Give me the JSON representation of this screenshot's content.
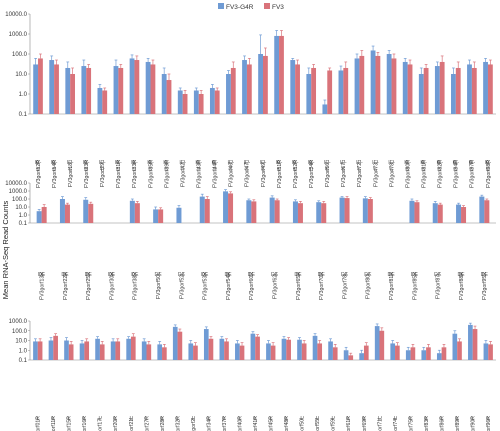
{
  "chart_data": {
    "type": "bar",
    "ylabel": "Mean RNA-Seq Read Counts",
    "yscale": "log",
    "colors": [
      "#6f9bd4",
      "#d9737a"
    ],
    "legend": [
      "FV3-G4R",
      "FV3"
    ],
    "legend_position": "top-center",
    "grid": false,
    "panels": [
      {
        "ylim": [
          0.1,
          10000
        ],
        "yticks": [
          "0.1",
          "1.0",
          "10.0",
          "100.0",
          "1000.0",
          "10000.0"
        ],
        "categories": [
          "FV3gorf12R",
          "FV3gorf14R",
          "FV3gorf18L",
          "FV3gorf23R",
          "FV3gorf29L",
          "FV3gorf31R",
          "FV3gorf33R",
          "FV3gorf35R",
          "FV3gorf39R",
          "FV3gorf42L",
          "FV3gorf43R",
          "FV3gorf44R",
          "FV3gorf46L",
          "FV3gorf47L",
          "FV3gorf49L",
          "FV3gorf51R",
          "FV3gorf52R",
          "FV3gorf54R",
          "FV3gorf56L",
          "FV3gorf67L",
          "FV3gorf72L",
          "FV3gorf73L",
          "FV3gorf78L",
          "FV3gorf80R",
          "FV3gorf81R",
          "FV3gorf82R",
          "FV3gorf94R",
          "FV3gorf97R",
          "FV3gorf98R"
        ],
        "groups": [
          "IE-S",
          "IE-S",
          "IE-S",
          "IE-S",
          "IE-Tr",
          "IE-S",
          "IE-S",
          "IE-S",
          "IE-S",
          "IE-Tr",
          "IE-Tr",
          "IE-Tr",
          "IE-S",
          "IE-S",
          "IE-S",
          "IE-S",
          "IE-S",
          "IE-Tr",
          "IE-S",
          "IE-S",
          "IE-S",
          "IE-S",
          "IE-S",
          "IE-S",
          "IE-S",
          "IE-S",
          "IE-S",
          "IE-S",
          "IE-S"
        ],
        "series": [
          {
            "name": "FV3-G4R",
            "values": [
              30,
              50,
              20,
              25,
              2,
              25,
              60,
              40,
              10,
              1.5,
              1.5,
              2,
              10,
              50,
              100,
              800,
              50,
              10,
              0.3,
              15,
              60,
              150,
              100,
              40,
              10,
              25,
              10,
              30,
              40
            ],
            "errors": [
              60,
              80,
              40,
              50,
              3,
              50,
              90,
              60,
              20,
              2,
              2,
              3,
              15,
              80,
              900,
              1500,
              60,
              20,
              0.5,
              25,
              100,
              250,
              150,
              60,
              20,
              40,
              20,
              50,
              60
            ]
          },
          {
            "name": "FV3",
            "values": [
              60,
              30,
              10,
              20,
              1.5,
              20,
              50,
              30,
              5,
              1,
              1,
              1.5,
              20,
              30,
              80,
              800,
              30,
              20,
              15,
              20,
              80,
              80,
              60,
              30,
              20,
              40,
              20,
              20,
              30
            ],
            "errors": [
              100,
              50,
              20,
              30,
              2,
              30,
              80,
              50,
              10,
              1.5,
              1.5,
              2,
              40,
              60,
              200,
              1500,
              50,
              30,
              20,
              40,
              150,
              120,
              100,
              50,
              30,
              80,
              40,
              40,
              50
            ]
          }
        ]
      },
      {
        "ylim": [
          0.1,
          10000
        ],
        "yticks": [
          "0.1",
          "1.0",
          "10.0",
          "100.0",
          "1000.0",
          "10000.0"
        ],
        "categories": [
          "FV3gorf13R",
          "FV3gorf22R",
          "FV3gorf25R",
          "FV3gorf30R",
          "FV3gorf38R",
          "FV3gorf50L",
          "FV3gorf52L",
          "FV3gorf53R",
          "FV3gorf54R",
          "FV3gorf60R",
          "FV3gorf62L",
          "FV3gorf65R",
          "FV3gorf70R",
          "FV3gorf78L",
          "FV3gorf80L",
          "FV3gorf81R",
          "FV3gorf85R",
          "FV3gorf87L",
          "FV3gorf88R",
          "FV3gorf95R"
        ],
        "groups": [
          "DE",
          "DE",
          "DE",
          "DE",
          "DE",
          "DE",
          "DE",
          "DE",
          "DE",
          "DE",
          "DE",
          "DE",
          "DE",
          "DE",
          "DE",
          "DE",
          "DE",
          "DE",
          "DE",
          "DE"
        ],
        "series": [
          {
            "name": "FV3-G4R",
            "values": [
              3,
              100,
              80,
              0.1,
              60,
              5,
              8,
              200,
              900,
              70,
              150,
              50,
              40,
              150,
              120,
              0.1,
              60,
              30,
              20,
              200
            ],
            "errors": [
              5,
              200,
              150,
              0.1,
              100,
              10,
              15,
              400,
              1500,
              100,
              250,
              80,
              60,
              200,
              200,
              0.1,
              100,
              50,
              30,
              300
            ]
          },
          {
            "name": "FV3",
            "values": [
              10,
              20,
              25,
              0.1,
              30,
              5,
              0.1,
              100,
              500,
              50,
              70,
              30,
              30,
              130,
              100,
              0.1,
              40,
              20,
              10,
              70
            ],
            "errors": [
              20,
              30,
              40,
              0.1,
              50,
              8,
              0.1,
              200,
              800,
              80,
              100,
              50,
              50,
              200,
              150,
              0.1,
              60,
              30,
              15,
              100
            ]
          }
        ]
      },
      {
        "ylim": [
          0.1,
          1000
        ],
        "yticks": [
          "0.1",
          "1.0",
          "10.0",
          "100.0",
          "1000.0"
        ],
        "categories": [
          "FV3gorf01R",
          "FV3gorf11R",
          "FV3gorf15R",
          "FV3gorf16R",
          "FV3gorf17L",
          "FV3gorf20R",
          "FV3gorf21L",
          "FV3gorf27R",
          "FV3gorf28R",
          "FV3gorf32R",
          "FV3gorf2L",
          "FV3gorf34R",
          "FV3gorf37R",
          "FV3gorf40R",
          "FV3gorf41R",
          "FV3gorf45R",
          "FV3gorf48R",
          "FV3gorf50L",
          "FV3gorf55L",
          "FV3gorf59L",
          "FV3gorf61R",
          "FV3gorf69R",
          "FV3gorf71L",
          "FV3gorf74L",
          "FV3gorf75R",
          "FV3gorf83R",
          "FV3gorf86R",
          "FV3gorf89R",
          "FV3gorf90R",
          "FV3gorf96R"
        ],
        "groups": [
          "L",
          "L",
          "L",
          "L",
          "L",
          "L",
          "L",
          "L",
          "L",
          "L",
          "L",
          "L",
          "L",
          "L",
          "L",
          "L",
          "L",
          "L",
          "L",
          "L",
          "L",
          "L",
          "L",
          "L",
          "L",
          "L",
          "L",
          "L",
          "L",
          "L"
        ],
        "series": [
          {
            "name": "FV3-G4R",
            "values": [
              8,
              10,
              10,
              5,
              15,
              8,
              15,
              8,
              4,
              250,
              5,
              150,
              15,
              5,
              50,
              5,
              15,
              12,
              30,
              8,
              1,
              0.5,
              300,
              5,
              1,
              1,
              0.5,
              50,
              400,
              5
            ],
            "errors": [
              15,
              20,
              20,
              10,
              25,
              15,
              25,
              15,
              8,
              400,
              10,
              250,
              25,
              10,
              80,
              10,
              25,
              20,
              50,
              15,
              2,
              1,
              500,
              10,
              2,
              2,
              1,
              100,
              600,
              10
            ]
          },
          {
            "name": "FV3",
            "values": [
              8,
              30,
              4,
              8,
              4,
              8,
              25,
              4,
              2,
              80,
              3,
              15,
              8,
              3,
              25,
              3,
              12,
              5,
              5,
              2,
              0.3,
              3,
              100,
              3,
              2,
              2,
              2,
              8,
              150,
              4
            ],
            "errors": [
              15,
              50,
              8,
              15,
              8,
              15,
              50,
              8,
              4,
              150,
              6,
              25,
              15,
              6,
              40,
              6,
              20,
              10,
              10,
              4,
              0.5,
              6,
              200,
              6,
              4,
              4,
              4,
              15,
              300,
              8
            ]
          }
        ]
      }
    ]
  }
}
